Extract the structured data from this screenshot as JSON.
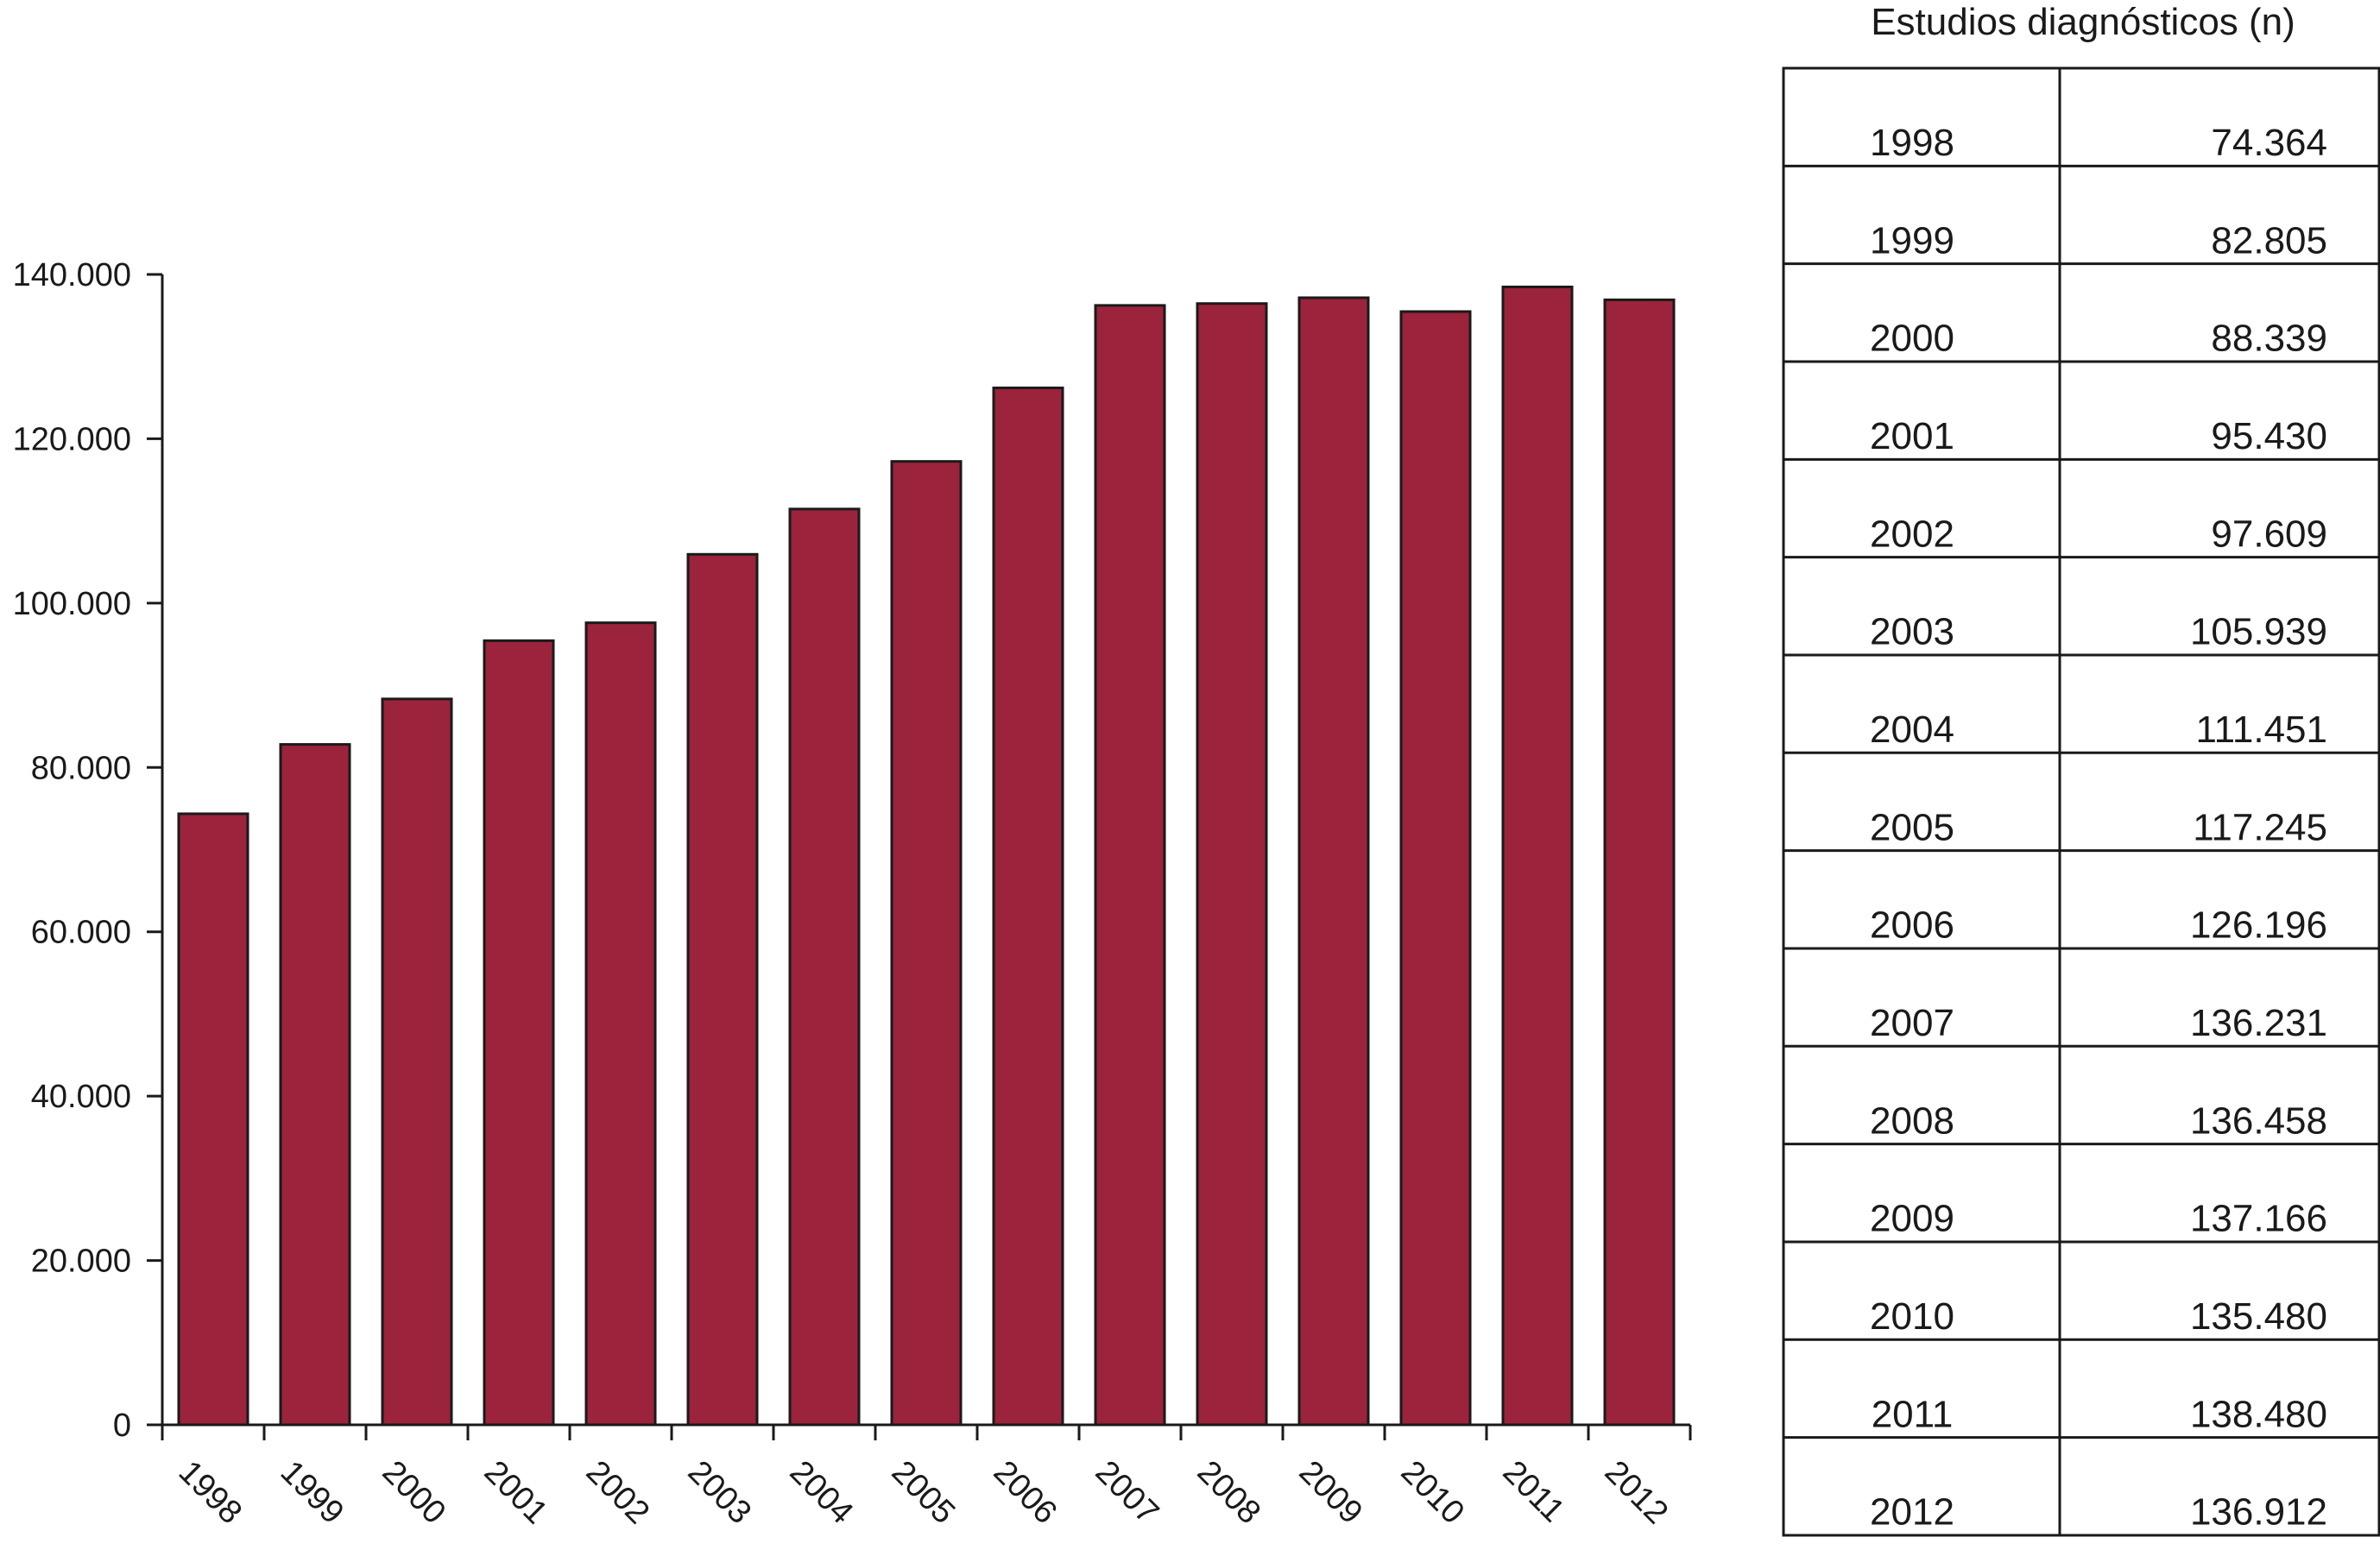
{
  "chart_data": {
    "type": "bar",
    "categories": [
      "1998",
      "1999",
      "2000",
      "2001",
      "2002",
      "2003",
      "2004",
      "2005",
      "2006",
      "2007",
      "2008",
      "2009",
      "2010",
      "2011",
      "2012"
    ],
    "values": [
      74364,
      82805,
      88339,
      95430,
      97609,
      105939,
      111451,
      117245,
      126196,
      136231,
      136458,
      137166,
      135480,
      138480,
      136912
    ],
    "ylim": [
      0,
      140000
    ],
    "yticks": [
      0,
      20000,
      40000,
      60000,
      80000,
      100000,
      120000,
      140000
    ],
    "ytick_labels": [
      "0",
      "20.000",
      "40.000",
      "60.000",
      "80.000",
      "100.000",
      "120.000",
      "140.000"
    ],
    "xlabel": "",
    "ylabel": "",
    "grid": false,
    "bar_color": "#9b233b",
    "bar_edge_color": "#1a1a1a"
  },
  "table": {
    "title": "Estudios diagnósticos (n)",
    "rows": [
      {
        "year": "1998",
        "value": "74.364"
      },
      {
        "year": "1999",
        "value": "82.805"
      },
      {
        "year": "2000",
        "value": "88.339"
      },
      {
        "year": "2001",
        "value": "95.430"
      },
      {
        "year": "2002",
        "value": "97.609"
      },
      {
        "year": "2003",
        "value": "105.939"
      },
      {
        "year": "2004",
        "value": "111.451"
      },
      {
        "year": "2005",
        "value": "117.245"
      },
      {
        "year": "2006",
        "value": "126.196"
      },
      {
        "year": "2007",
        "value": "136.231"
      },
      {
        "year": "2008",
        "value": "136.458"
      },
      {
        "year": "2009",
        "value": "137.166"
      },
      {
        "year": "2010",
        "value": "135.480"
      },
      {
        "year": "2011",
        "value": "138.480"
      },
      {
        "year": "2012",
        "value": "136.912"
      }
    ]
  }
}
